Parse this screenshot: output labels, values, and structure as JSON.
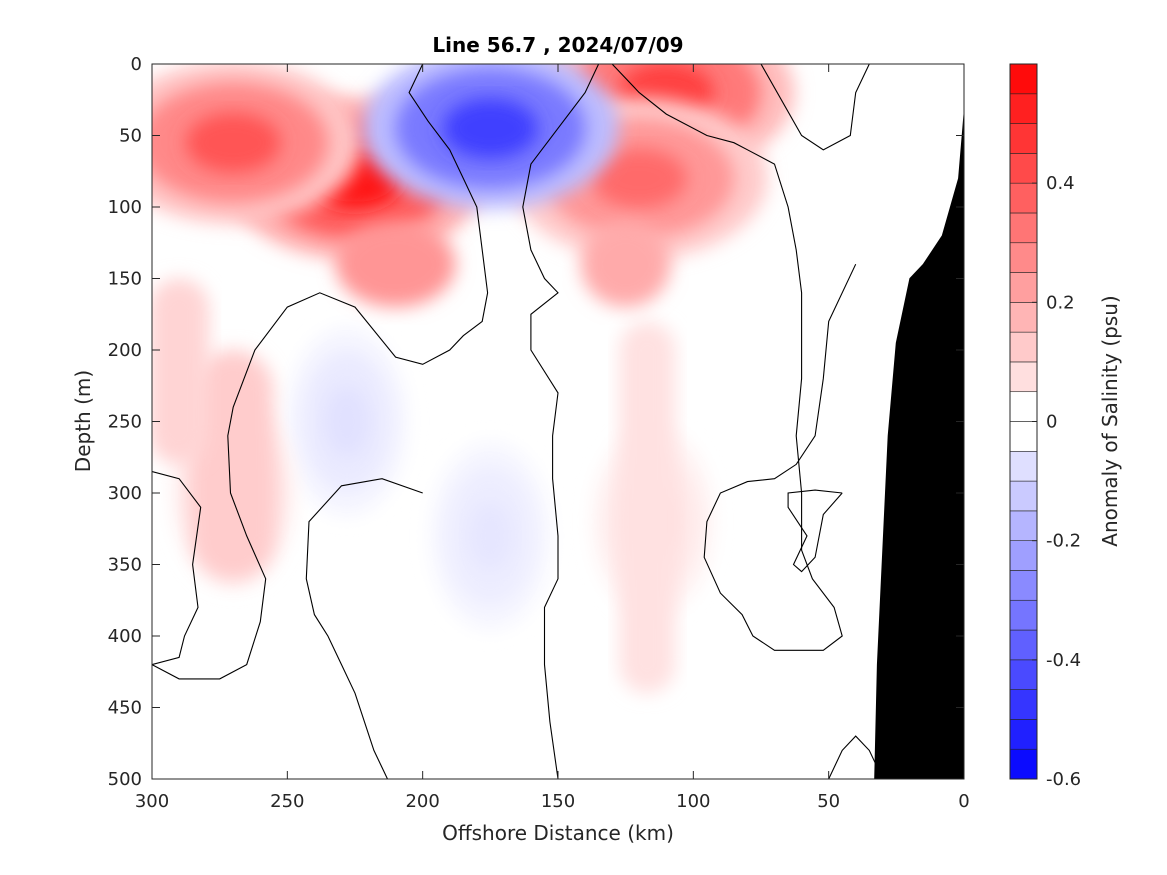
{
  "chart_data": {
    "type": "heatmap",
    "title": "Line 56.7 , 2024/07/09",
    "xlabel": "Offshore Distance (km)",
    "ylabel": "Depth (m)",
    "xlim": [
      300,
      0
    ],
    "ylim": [
      0,
      500
    ],
    "x_reversed": true,
    "y_reversed": true,
    "x_ticks": [
      300,
      250,
      200,
      150,
      100,
      50,
      0
    ],
    "y_ticks": [
      0,
      50,
      100,
      150,
      200,
      250,
      300,
      350,
      400,
      450,
      500
    ],
    "colorbar": {
      "label": "Anomaly of Salinity (psu)",
      "range": [
        -0.6,
        0.6
      ],
      "step": 0.05,
      "ticks": [
        -0.6,
        -0.4,
        -0.2,
        0,
        0.2,
        0.4
      ],
      "negative_color": "#0000ff",
      "positive_color": "#ff0000",
      "zero_color": "#ffffff"
    },
    "features": [
      {
        "name": "positive-anomaly",
        "x": 225,
        "y": 80,
        "value": 0.55
      },
      {
        "name": "positive-anomaly",
        "x": 270,
        "y": 55,
        "value": 0.4
      },
      {
        "name": "positive-anomaly",
        "x": 110,
        "y": 20,
        "value": 0.45
      },
      {
        "name": "positive-anomaly",
        "x": 120,
        "y": 80,
        "value": 0.35
      },
      {
        "name": "negative-anomaly",
        "x": 175,
        "y": 45,
        "value": -0.45
      },
      {
        "name": "weak-negative-anomaly",
        "x": 228,
        "y": 250,
        "value": -0.07
      },
      {
        "name": "weak-negative-anomaly",
        "x": 175,
        "y": 330,
        "value": -0.06
      },
      {
        "name": "weak-positive-anomaly",
        "x": 115,
        "y": 320,
        "value": 0.08
      },
      {
        "name": "weak-positive-anomaly",
        "x": 270,
        "y": 300,
        "value": 0.12
      }
    ],
    "bathymetry_color": "#000000"
  }
}
